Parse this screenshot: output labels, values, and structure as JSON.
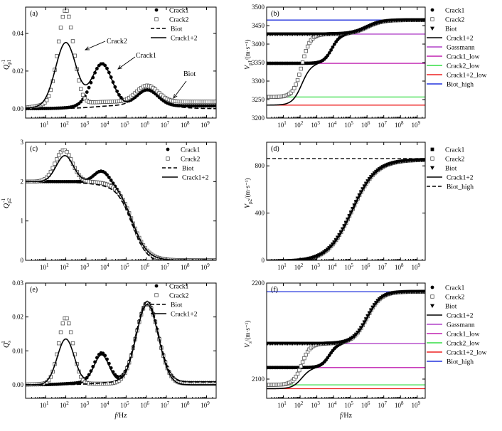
{
  "chart_data": [
    {
      "type": "line",
      "panel": "(a)",
      "ylabel": "Q_p1^-1",
      "xlabel": "",
      "xscale": "log",
      "xlim": [
        1,
        3000000000
      ],
      "ylim": [
        -0.005,
        0.054
      ],
      "yticks": [
        0,
        0.02,
        0.04
      ],
      "ytick_labels": [
        "0.00",
        "0.02",
        "0.04"
      ],
      "legend": {
        "position": "top-right",
        "entries": [
          "Crack1",
          "Crack2",
          "Biot",
          "Crack1+2"
        ]
      },
      "annotations": [
        "Crack2",
        "Crack1",
        "Biot"
      ],
      "series": [
        {
          "name": "Crack1",
          "marker": "filled-circle",
          "color": "#000000"
        },
        {
          "name": "Crack2",
          "marker": "open-square",
          "color": "#555555"
        },
        {
          "name": "Biot",
          "style": "dashed",
          "color": "#000000"
        },
        {
          "name": "Crack1+2",
          "style": "solid",
          "color": "#000000"
        }
      ]
    },
    {
      "type": "line",
      "panel": "(b)",
      "ylabel": "V_p1/(m·s^-1)",
      "xlabel": "",
      "xscale": "log",
      "xlim": [
        1,
        3000000000
      ],
      "ylim": [
        3200,
        3500
      ],
      "yticks": [
        3200,
        3250,
        3300,
        3350,
        3400,
        3450,
        3500
      ],
      "ytick_labels": [
        "3200",
        "3250",
        "3300",
        "3350",
        "3400",
        "3450",
        "3500"
      ],
      "legend": {
        "position": "right",
        "entries": [
          "Crack1",
          "Crack2",
          "Biot",
          "Crack1+2",
          "Gassmann",
          "Crack1_low",
          "Crack2_low",
          "Crack1+2_low",
          "Biot_high"
        ]
      },
      "series": [
        {
          "name": "Crack1",
          "marker": "filled-circle",
          "color": "#000000"
        },
        {
          "name": "Crack2",
          "marker": "open-square",
          "color": "#555555"
        },
        {
          "name": "Biot",
          "marker": "filled-triangle-down",
          "color": "#000000"
        },
        {
          "name": "Crack1+2",
          "style": "solid",
          "color": "#000000"
        },
        {
          "name": "Gassmann",
          "color": "#b040c8",
          "value": 3427
        },
        {
          "name": "Crack1_low",
          "color": "#c020b0",
          "value": 3348
        },
        {
          "name": "Crack2_low",
          "color": "#33dd44",
          "value": 3257
        },
        {
          "name": "Crack1+2_low",
          "color": "#ee2222",
          "value": 3235
        },
        {
          "name": "Biot_high",
          "color": "#2233dd",
          "value": 3465
        }
      ]
    },
    {
      "type": "line",
      "panel": "(c)",
      "ylabel": "Q_p2^-1",
      "xlabel": "",
      "xscale": "log",
      "xlim": [
        1,
        3000000000
      ],
      "ylim": [
        0,
        3
      ],
      "yticks": [
        0,
        1,
        2,
        3
      ],
      "ytick_labels": [
        "0",
        "1",
        "2",
        "3"
      ],
      "legend": {
        "position": "right",
        "entries": [
          "Crack1",
          "Crack2",
          "Biot",
          "Crack1+2"
        ]
      },
      "series": [
        {
          "name": "Crack1",
          "marker": "filled-circle",
          "color": "#000000"
        },
        {
          "name": "Crack2",
          "marker": "open-square",
          "color": "#555555"
        },
        {
          "name": "Biot",
          "style": "dashed",
          "color": "#000000"
        },
        {
          "name": "Crack1+2",
          "style": "solid",
          "color": "#000000"
        }
      ]
    },
    {
      "type": "line",
      "panel": "(d)",
      "ylabel": "V_p2/(m·s^-1)",
      "xlabel": "",
      "xscale": "log",
      "xlim": [
        1,
        3000000000
      ],
      "ylim": [
        0,
        1000
      ],
      "yticks": [
        0,
        400,
        800
      ],
      "ytick_labels": [
        "0",
        "400",
        "800"
      ],
      "legend": {
        "position": "right",
        "entries": [
          "Crack1",
          "Crack2",
          "Biot",
          "Crack1+2",
          "Biot_high"
        ]
      },
      "series": [
        {
          "name": "Crack1",
          "marker": "filled-square",
          "color": "#000000"
        },
        {
          "name": "Crack2",
          "marker": "open-square",
          "color": "#555555"
        },
        {
          "name": "Biot",
          "marker": "filled-triangle-down",
          "color": "#000000"
        },
        {
          "name": "Crack1+2",
          "style": "solid",
          "color": "#000000"
        },
        {
          "name": "Biot_high",
          "style": "dashed",
          "color": "#000000",
          "value": 862
        }
      ]
    },
    {
      "type": "line",
      "panel": "(e)",
      "ylabel": "Q_s^-1",
      "xlabel": "f/Hz",
      "xscale": "log",
      "xlim": [
        1,
        3000000000
      ],
      "ylim": [
        -0.004,
        0.03
      ],
      "yticks": [
        0,
        0.01,
        0.02,
        0.03
      ],
      "ytick_labels": [
        "0.00",
        "0.01",
        "0.02",
        "0.03"
      ],
      "legend": {
        "position": "top-right",
        "entries": [
          "Crack1",
          "Crack2",
          "Biot",
          "Crack1+2"
        ]
      },
      "series": [
        {
          "name": "Crack1",
          "marker": "filled-circle",
          "color": "#000000"
        },
        {
          "name": "Crack2",
          "marker": "open-square",
          "color": "#555555"
        },
        {
          "name": "Biot",
          "style": "dashed",
          "color": "#000000"
        },
        {
          "name": "Crack1+2",
          "style": "solid",
          "color": "#000000"
        }
      ]
    },
    {
      "type": "line",
      "panel": "(f)",
      "ylabel": "V_s/(m·s^-1)",
      "xlabel": "f/Hz",
      "xscale": "log",
      "xlim": [
        1,
        3000000000
      ],
      "ylim": [
        2080,
        2200
      ],
      "yticks": [
        2100,
        2200
      ],
      "ytick_labels": [
        "2100",
        "2200"
      ],
      "legend": {
        "position": "right",
        "entries": [
          "Crack1",
          "Crack2",
          "Biot",
          "Crack1+2",
          "Gassmann",
          "Crack1_low",
          "Crack2_low",
          "Crack1+2_low",
          "Biot_high"
        ]
      },
      "series": [
        {
          "name": "Crack1",
          "marker": "filled-circle",
          "color": "#000000"
        },
        {
          "name": "Crack2",
          "marker": "open-square",
          "color": "#555555"
        },
        {
          "name": "Biot",
          "marker": "filled-triangle-down",
          "color": "#000000"
        },
        {
          "name": "Crack1+2",
          "style": "solid",
          "color": "#000000"
        },
        {
          "name": "Gassmann",
          "color": "#b040c8",
          "value": 2137
        },
        {
          "name": "Crack1_low",
          "color": "#c020b0",
          "value": 2112
        },
        {
          "name": "Crack2_low",
          "color": "#33dd44",
          "value": 2094
        },
        {
          "name": "Crack1+2_low",
          "color": "#ee2222",
          "value": 2090
        },
        {
          "name": "Biot_high",
          "color": "#2233dd",
          "value": 2191
        }
      ]
    }
  ],
  "axis": {
    "xtick_base": "10",
    "xtick_exps": [
      "1",
      "2",
      "3",
      "4",
      "5",
      "6",
      "7",
      "8",
      "9"
    ]
  }
}
